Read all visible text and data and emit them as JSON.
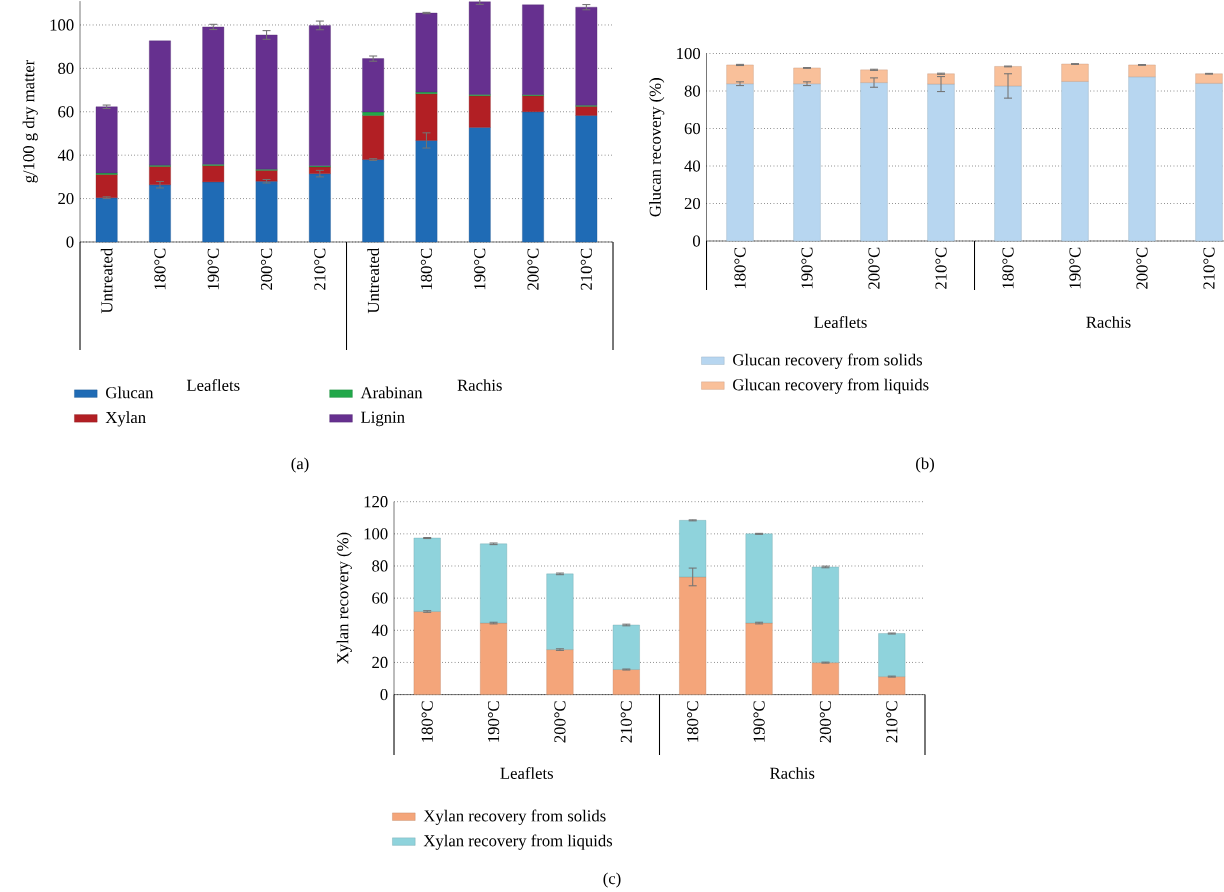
{
  "chart_data": [
    {
      "type": "bar",
      "stacked": true,
      "ylabel": "g/100 g dry matter",
      "categories": [
        "Untreated",
        "180°C",
        "190°C",
        "200°C",
        "210°C",
        "Untreated",
        "180°C",
        "190°C",
        "200°C",
        "210°C"
      ],
      "series": [
        {
          "name": "Glucan",
          "color": "#1f6bb5",
          "values": [
            20.4,
            26.4,
            27.7,
            28,
            31.5,
            38,
            46.8,
            52.8,
            60,
            58.3
          ],
          "errors": [
            0.4,
            1.5,
            null,
            0.8,
            1.5,
            0.4,
            3.5,
            null,
            null,
            null
          ]
        },
        {
          "name": "Xylan",
          "color": "#b21f24",
          "values": [
            10.7,
            8.4,
            7.5,
            5,
            3.1,
            20.3,
            21.5,
            14.6,
            7.4,
            4.2
          ]
        },
        {
          "name": "Arabinan",
          "color": "#22a84a",
          "values": [
            0.7,
            0.6,
            0.6,
            0.5,
            0.5,
            1.6,
            0.8,
            0.6,
            0.5,
            0.5
          ]
        },
        {
          "name": "Lignin",
          "color": "#66308f",
          "values": [
            30.5,
            57.3,
            63.3,
            61.9,
            64.7,
            24.6,
            36.4,
            42.7,
            41.4,
            45.2
          ],
          "errors": [
            0.8,
            null,
            1.2,
            2,
            2,
            1.2,
            0.3,
            1.2,
            null,
            1.2
          ]
        }
      ],
      "ylim": [
        0,
        111
      ],
      "yticks": [
        0,
        20,
        40,
        60,
        80,
        100
      ],
      "grid": "y",
      "legend": "bottom",
      "annotations": [
        "Leaflets",
        "Rachis",
        "(a)"
      ]
    },
    {
      "type": "bar",
      "stacked": true,
      "ylabel": "Glucan recovery (%)",
      "categories": [
        "180°C",
        "190°C",
        "200°C",
        "210°C",
        "180°C",
        "190°C",
        "200°C",
        "210°C"
      ],
      "series": [
        {
          "name": "Glucan recovery from solids",
          "color": "#b7d6f0",
          "values": [
            83.9,
            83.9,
            84.5,
            83.7,
            82.7,
            85.1,
            87.6,
            84.1
          ],
          "errors": [
            1,
            1,
            2.5,
            4,
            6.5,
            null,
            null,
            null
          ]
        },
        {
          "name": "Glucan recovery from liquids",
          "color": "#f9c09a",
          "values": [
            10,
            8.4,
            6.8,
            5.5,
            10.4,
            9.3,
            6.3,
            5.1
          ],
          "errors": [
            0.3,
            0.2,
            0.3,
            0.3,
            0.2,
            0.2,
            0.2,
            0.2
          ]
        }
      ],
      "ylim": [
        0,
        100
      ],
      "yticks": [
        0,
        20,
        40,
        60,
        80,
        100
      ],
      "grid": "y",
      "legend": "bottom",
      "annotations": [
        "Leaflets",
        "Rachis",
        "(b)"
      ]
    },
    {
      "type": "bar",
      "stacked": true,
      "ylabel": "Xylan recovery (%)",
      "categories": [
        "180°C",
        "190°C",
        "200°C",
        "210°C",
        "180°C",
        "190°C",
        "200°C",
        "210°C"
      ],
      "series": [
        {
          "name": "Xylan recovery from solids",
          "color": "#f4a57a",
          "values": [
            51.7,
            44.5,
            28,
            15.6,
            73.2,
            44.5,
            19.9,
            11.2
          ],
          "errors": [
            0.5,
            0.5,
            0.5,
            0.3,
            5.5,
            0.5,
            0.3,
            0.3
          ]
        },
        {
          "name": "Xylan recovery from liquids",
          "color": "#8fd3dc",
          "values": [
            45.7,
            49.3,
            47.1,
            27.7,
            35.2,
            55.5,
            59.5,
            26.8
          ],
          "errors": [
            0.3,
            0.5,
            0.5,
            0.5,
            0.3,
            0.3,
            0.5,
            0.3
          ]
        }
      ],
      "ylim": [
        0,
        120
      ],
      "yticks": [
        0,
        20,
        40,
        60,
        80,
        100,
        120
      ],
      "grid": "y",
      "legend": "bottom",
      "annotations": [
        "Leaflets",
        "Rachis",
        "(c)"
      ]
    }
  ]
}
